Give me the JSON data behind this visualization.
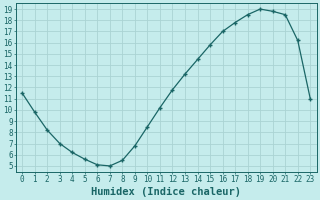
{
  "x": [
    0,
    1,
    2,
    3,
    4,
    5,
    6,
    7,
    8,
    9,
    10,
    11,
    12,
    13,
    14,
    15,
    16,
    17,
    18,
    19,
    20,
    21,
    22,
    23
  ],
  "y": [
    11.5,
    9.8,
    8.2,
    7.0,
    6.2,
    5.6,
    5.1,
    5.0,
    5.5,
    6.8,
    8.5,
    10.2,
    11.8,
    13.2,
    14.5,
    15.8,
    17.0,
    17.8,
    18.5,
    19.0,
    18.8,
    18.5,
    16.2,
    11.0
  ],
  "line_color": "#1a6666",
  "marker": "+",
  "marker_size": 3.5,
  "marker_lw": 1.0,
  "line_width": 0.9,
  "bg_color": "#c5ecec",
  "grid_color": "#aad4d4",
  "xlabel": "Humidex (Indice chaleur)",
  "xlim": [
    -0.5,
    23.5
  ],
  "ylim": [
    4.5,
    19.5
  ],
  "yticks": [
    5,
    6,
    7,
    8,
    9,
    10,
    11,
    12,
    13,
    14,
    15,
    16,
    17,
    18,
    19
  ],
  "xticks": [
    0,
    1,
    2,
    3,
    4,
    5,
    6,
    7,
    8,
    9,
    10,
    11,
    12,
    13,
    14,
    15,
    16,
    17,
    18,
    19,
    20,
    21,
    22,
    23
  ],
  "tick_color": "#1a6666",
  "label_fontsize": 5.5,
  "xlabel_fontsize": 7.5
}
